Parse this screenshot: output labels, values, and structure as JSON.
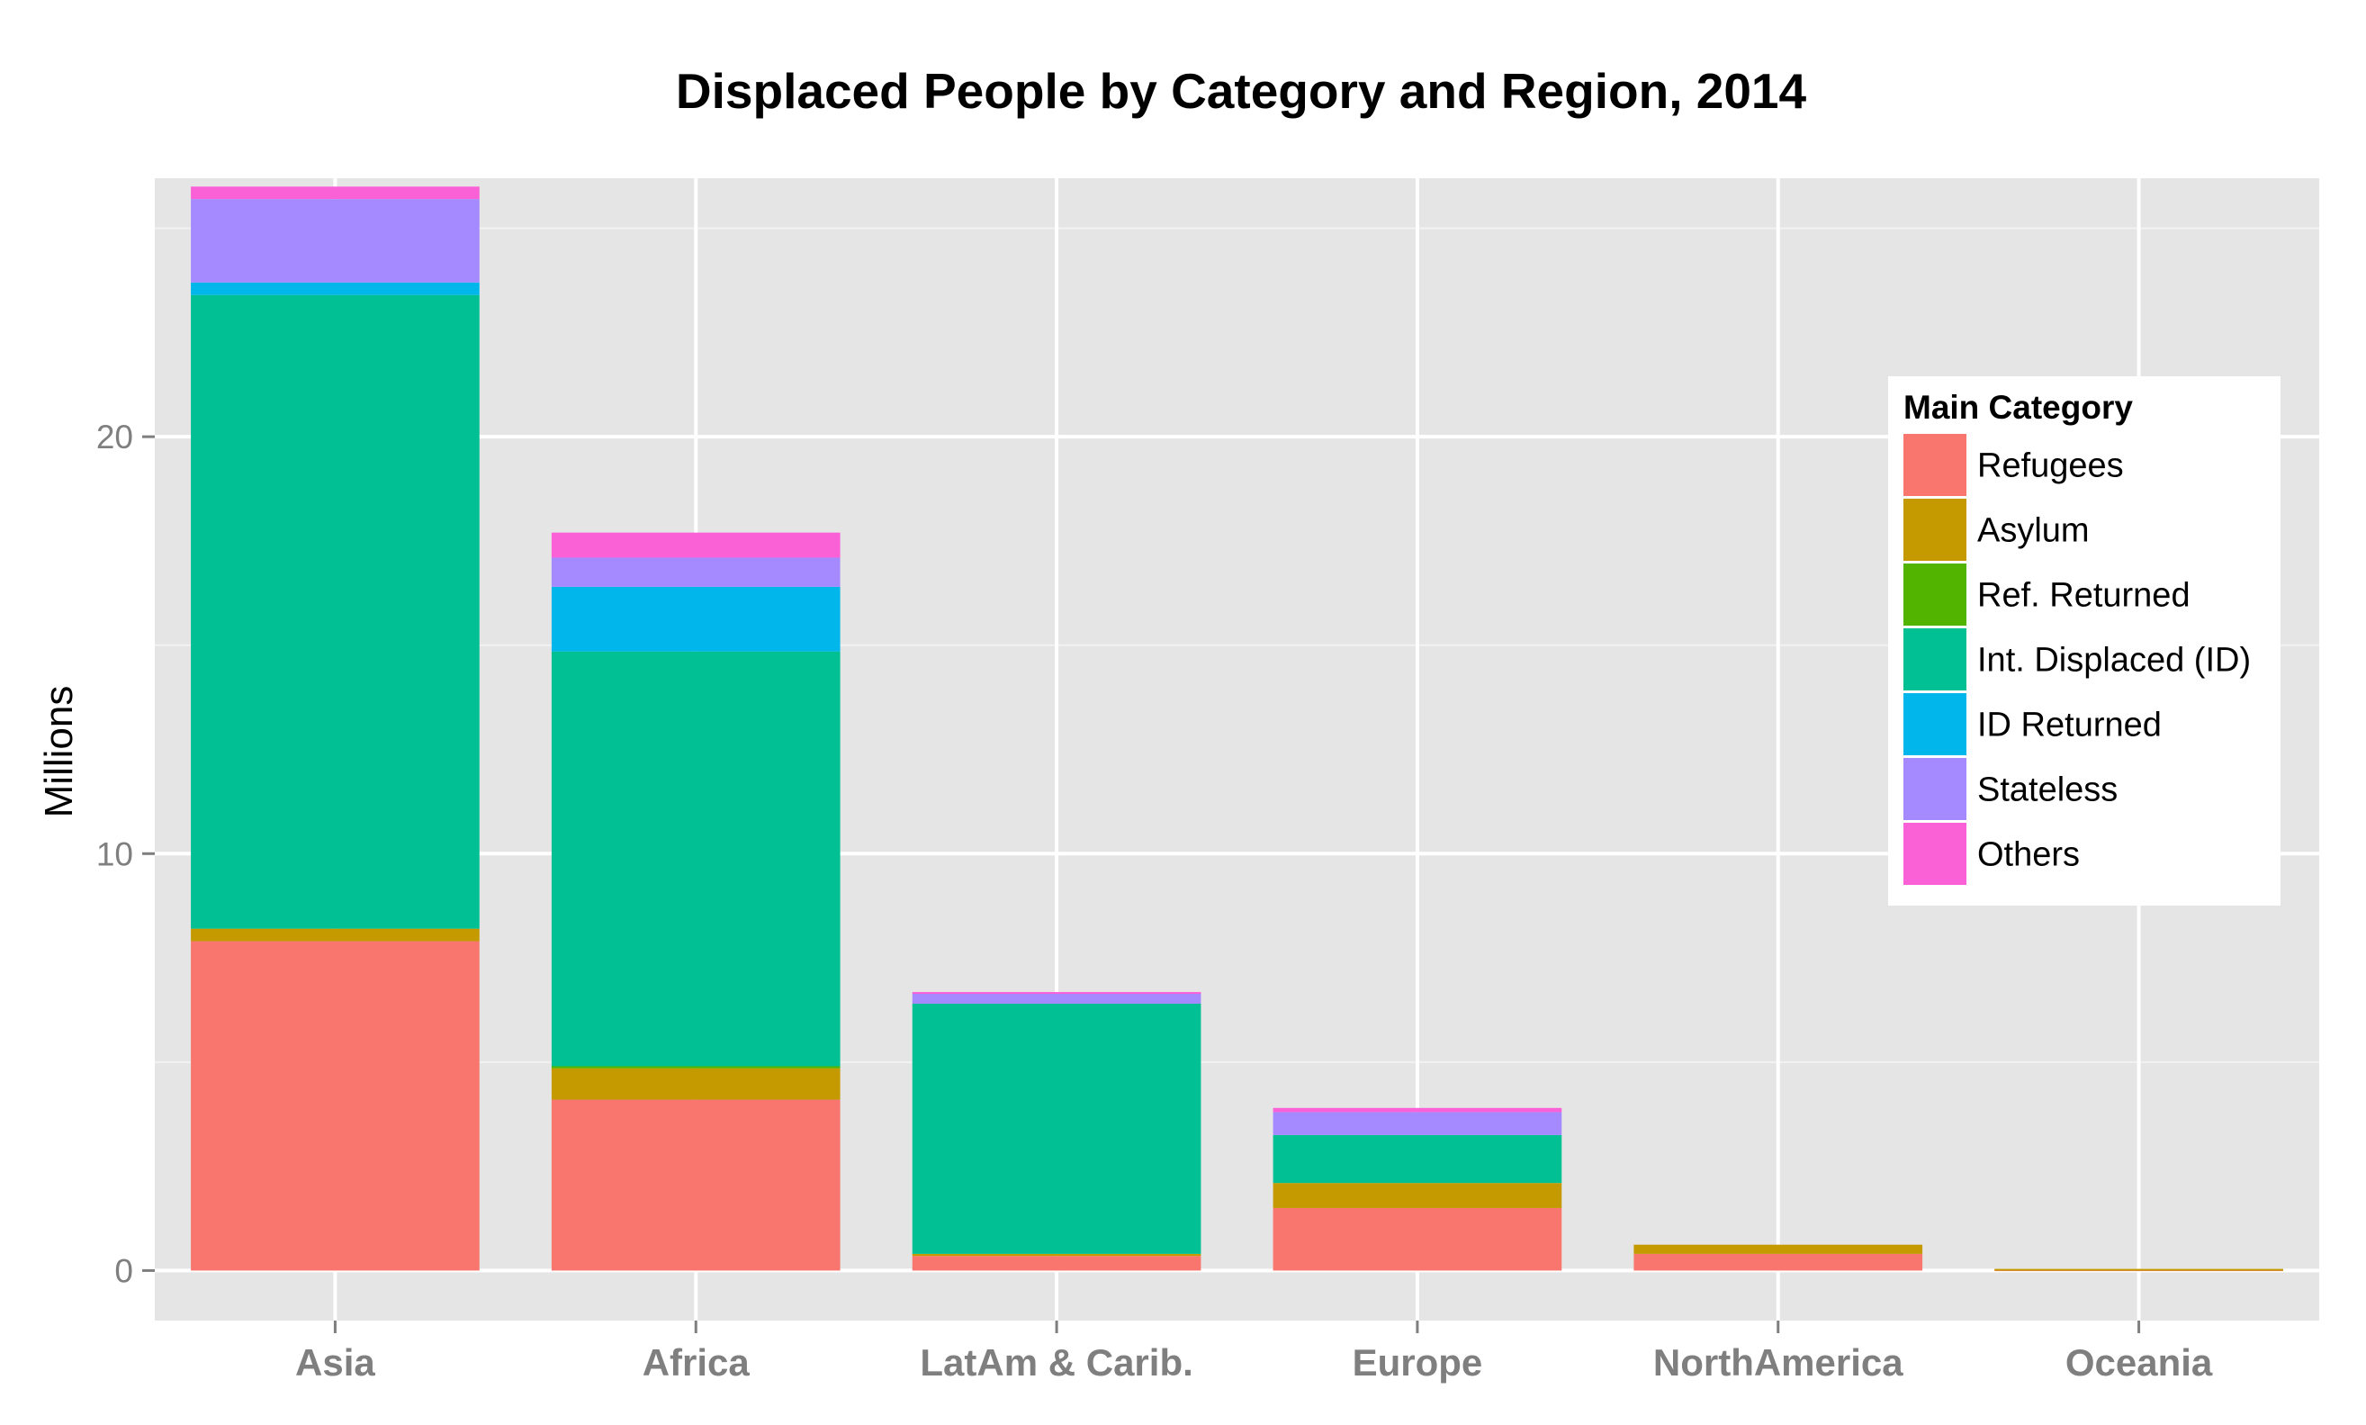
{
  "chart_data": {
    "type": "bar",
    "stacked": true,
    "title": "Displaced People by Category and Region, 2014",
    "xlabel": "",
    "ylabel": "Millions",
    "ylim": [
      -1.2,
      26.2
    ],
    "yticks": [
      0,
      10,
      20
    ],
    "ytick_labels": [
      "0",
      "10",
      "20"
    ],
    "grid": true,
    "legend_position": "right, inside plot",
    "legend_title": "Main Category",
    "categories": [
      "Asia",
      "Africa",
      "LatAm & Carib.",
      "Europe",
      "NorthAmerica",
      "Oceania"
    ],
    "series": [
      {
        "name": "Refugees",
        "color": "#F8766D",
        "values": [
          7.9,
          4.1,
          0.35,
          1.5,
          0.4,
          0.03
        ]
      },
      {
        "name": "Asylum",
        "color": "#C49A00",
        "values": [
          0.3,
          0.75,
          0.05,
          0.6,
          0.22,
          0.01
        ]
      },
      {
        "name": "Ref. Returned",
        "color": "#53B400",
        "values": [
          0.0,
          0.05,
          0.0,
          0.0,
          0.0,
          0.0
        ]
      },
      {
        "name": "Int. Displaced (ID)",
        "color": "#00C094",
        "values": [
          15.2,
          9.95,
          6.0,
          1.15,
          0.0,
          0.0
        ]
      },
      {
        "name": "ID Returned",
        "color": "#00B6EB",
        "values": [
          0.3,
          1.55,
          0.0,
          0.0,
          0.0,
          0.0
        ]
      },
      {
        "name": "Stateless",
        "color": "#A58AFF",
        "values": [
          2.0,
          0.7,
          0.25,
          0.55,
          0.0,
          0.0
        ]
      },
      {
        "name": "Others",
        "color": "#FB61D7",
        "values": [
          0.3,
          0.6,
          0.03,
          0.1,
          0.0,
          0.0
        ]
      }
    ]
  }
}
